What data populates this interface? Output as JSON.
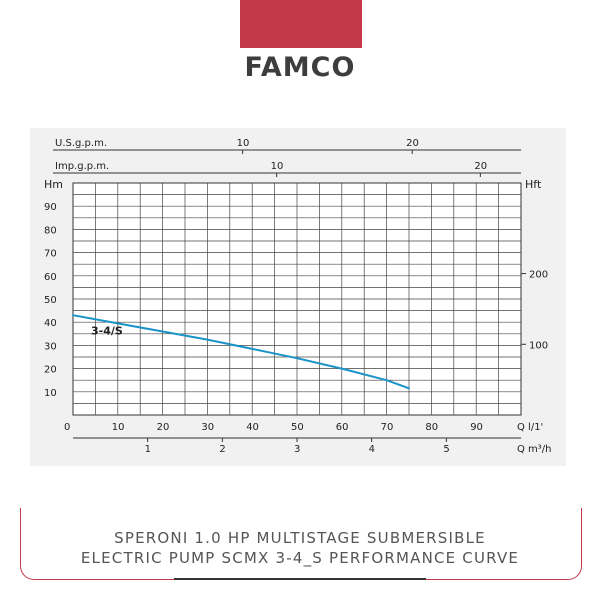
{
  "brand": {
    "logo_text": "FAMCO",
    "accent": "#c4384a"
  },
  "caption": {
    "line1": "SPERONI 1.0 HP MULTISTAGE SUBMERSIBLE",
    "line2": "ELECTRIC PUMP SCMX 3-4_S PERFORMANCE CURVE"
  },
  "chart_data": {
    "type": "line",
    "title": "",
    "series": [
      {
        "name": "3-4/S",
        "color": "#1a93c8",
        "x": [
          0,
          10,
          20,
          30,
          40,
          50,
          60,
          70,
          75
        ],
        "y": [
          43,
          39.5,
          36,
          32.5,
          28.5,
          24.5,
          20,
          15,
          11.5
        ]
      }
    ],
    "x_axis": {
      "label": "Q l/1'",
      "ticks": [
        0,
        10,
        20,
        30,
        40,
        50,
        60,
        70,
        80,
        90
      ],
      "range": [
        0,
        100
      ]
    },
    "y_axis_left": {
      "label": "Hm",
      "ticks": [
        10,
        20,
        30,
        40,
        50,
        60,
        70,
        80,
        90
      ],
      "range": [
        0,
        100
      ]
    },
    "y_axis_right": {
      "label": "Hft",
      "ticks": [
        100,
        200
      ]
    },
    "x_axis_m3h": {
      "label": "Q m³/h",
      "ticks": [
        1,
        2,
        3,
        4,
        5
      ]
    },
    "x_axis_usgpm": {
      "label": "U.S.g.p.m.",
      "ticks": [
        10,
        20
      ]
    },
    "x_axis_impgpm": {
      "label": "Imp.g.p.m.",
      "ticks": [
        10,
        20
      ]
    },
    "grid": true
  }
}
